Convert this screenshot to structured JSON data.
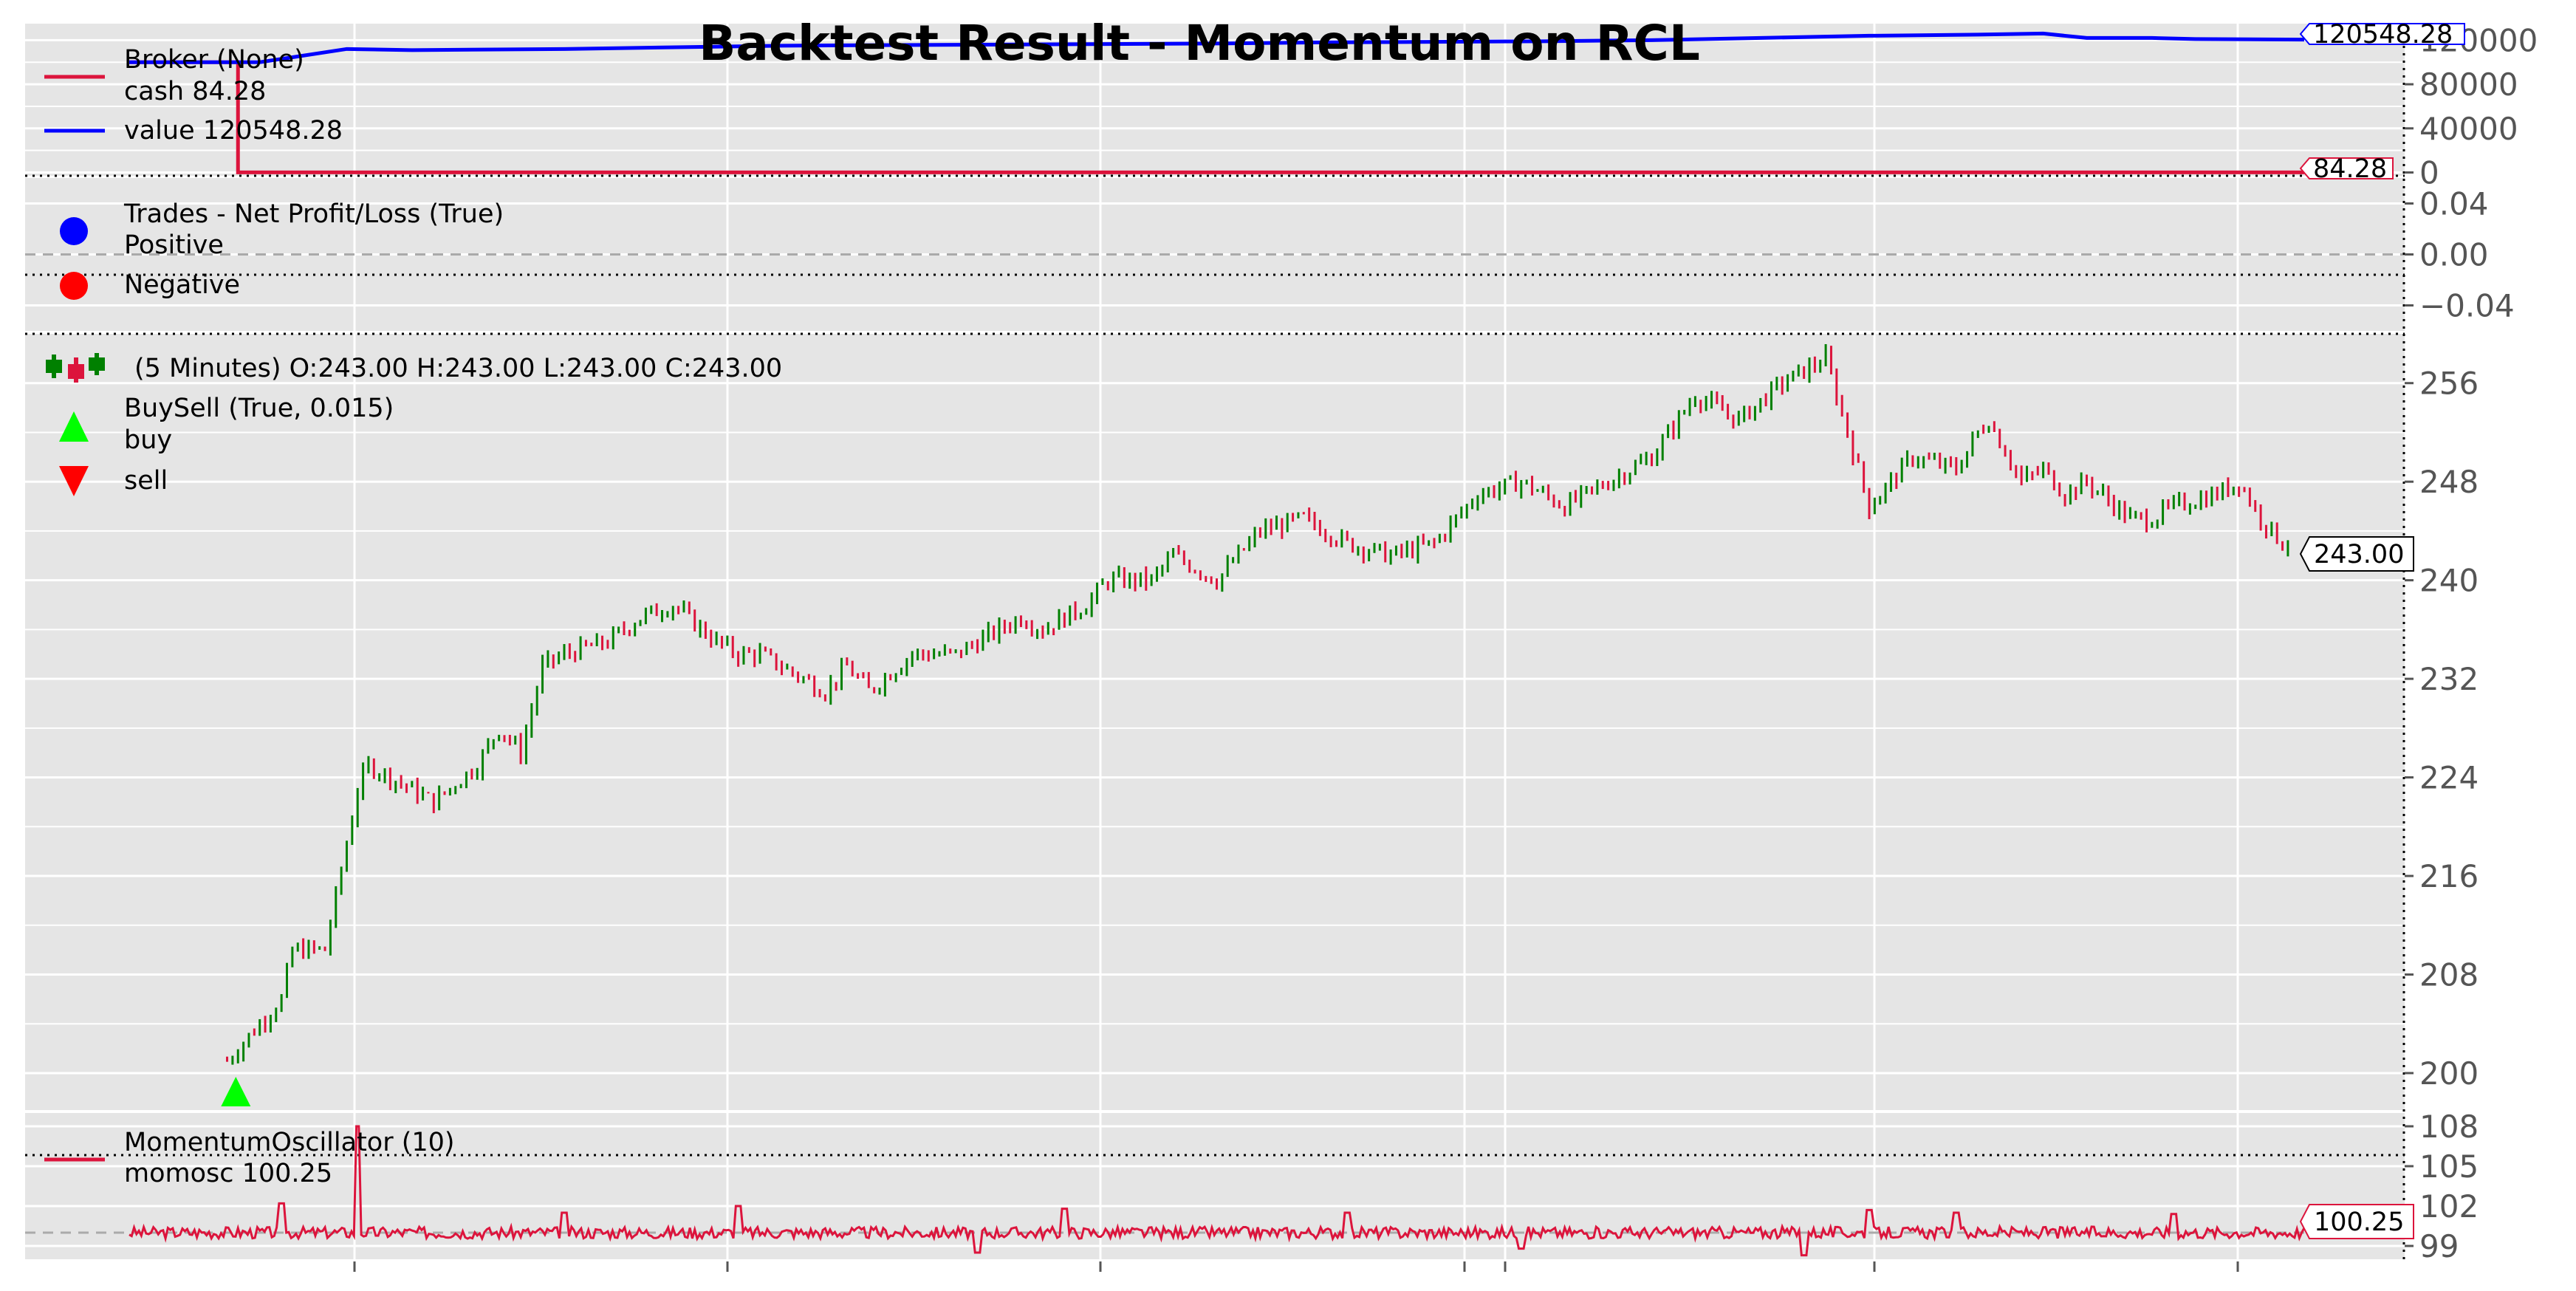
{
  "title": "Backtest Result - Momentum on RCL",
  "colors": {
    "panel_bg": "#e5e5e5",
    "grid": "#ffffff",
    "cash": "#dc143c",
    "value": "#0000ff",
    "positive": "#0000ff",
    "negative": "#ff0000",
    "candle_up": "#008000",
    "candle_down": "#dc143c",
    "buy": "#00ff00",
    "sell": "#ff0000",
    "momentum": "#dc143c"
  },
  "chart_data": [
    {
      "panel": "broker",
      "type": "line",
      "legend": {
        "title": "Broker (None)",
        "entries": [
          "cash 84.28",
          "value 120548.28"
        ]
      },
      "y_ticks": [
        "0",
        "40000",
        "80000",
        "120000"
      ],
      "y_tick_values": [
        0,
        40000,
        80000,
        120000
      ],
      "ylim": [
        -3000,
        135000
      ],
      "last_values": {
        "cash": "84.28",
        "value": "120548.28"
      },
      "series": [
        {
          "name": "cash",
          "x": [
            0,
            0.05,
            0.05,
            0.06,
            1.0
          ],
          "y": [
            100000,
            100000,
            84.28,
            84.28,
            84.28
          ]
        },
        {
          "name": "value",
          "x": [
            0,
            0.06,
            0.1,
            0.13,
            0.2,
            0.3,
            0.4,
            0.5,
            0.55,
            0.6,
            0.65,
            0.7,
            0.75,
            0.8,
            0.85,
            0.88,
            0.9,
            0.93,
            0.95,
            1.0
          ],
          "y": [
            100000,
            100000,
            112000,
            111000,
            112000,
            115000,
            116000,
            117000,
            118000,
            118500,
            119000,
            120000,
            122000,
            124000,
            125000,
            126000,
            122000,
            122000,
            121000,
            120548.28
          ]
        }
      ]
    },
    {
      "panel": "trades",
      "type": "scatter",
      "legend": {
        "title": "Trades - Net Profit/Loss (True)",
        "entries": [
          "Positive",
          "Negative"
        ]
      },
      "y_ticks": [
        "0.04",
        "0.00",
        "−0.04"
      ],
      "y_tick_values": [
        0.04,
        0.0,
        -0.04
      ],
      "ylim": [
        -0.06,
        0.06
      ],
      "points": []
    },
    {
      "panel": "price",
      "type": "candlestick",
      "legend": {
        "title": "(5 Minutes) O:243.00 H:243.00 L:243.00 C:243.00",
        "buysell_title": "BuySell (True, 0.015)",
        "entries": [
          "buy",
          "sell"
        ]
      },
      "ohlc": {
        "open": 243.0,
        "high": 243.0,
        "low": 243.0,
        "close": 243.0
      },
      "last_value": "243.00",
      "y_ticks": [
        "200",
        "208",
        "216",
        "224",
        "232",
        "240",
        "248",
        "256"
      ],
      "y_tick_values": [
        200,
        208,
        216,
        224,
        232,
        240,
        248,
        256
      ],
      "ylim": [
        197,
        260
      ],
      "buy_markers": [
        {
          "x": 0.049,
          "y": 198.5
        }
      ],
      "sell_markers": [],
      "close_path": {
        "x": [
          0.045,
          0.05,
          0.06,
          0.07,
          0.075,
          0.08,
          0.09,
          0.105,
          0.11,
          0.12,
          0.13,
          0.14,
          0.16,
          0.17,
          0.18,
          0.19,
          0.2,
          0.22,
          0.235,
          0.25,
          0.27,
          0.28,
          0.29,
          0.31,
          0.32,
          0.33,
          0.34,
          0.36,
          0.38,
          0.4,
          0.41,
          0.42,
          0.44,
          0.45,
          0.47,
          0.48,
          0.5,
          0.52,
          0.54,
          0.56,
          0.58,
          0.6,
          0.62,
          0.64,
          0.66,
          0.68,
          0.7,
          0.72,
          0.74,
          0.76,
          0.78,
          0.8,
          0.82,
          0.84,
          0.85,
          0.855,
          0.87,
          0.88,
          0.89,
          0.9,
          0.92,
          0.93,
          0.94,
          0.96,
          0.97,
          0.98,
          0.99,
          0.995
        ],
        "y": [
          201,
          202,
          204,
          206,
          210,
          210,
          210,
          223,
          225,
          224,
          223,
          222,
          225,
          228,
          226,
          233,
          234,
          235,
          237,
          238,
          235,
          234,
          234,
          232,
          231,
          233,
          231,
          234,
          234,
          236,
          237,
          236,
          238,
          240,
          240,
          242,
          240,
          244,
          245,
          243,
          242,
          243,
          247,
          248,
          246,
          248,
          250,
          255,
          253,
          256,
          258,
          246,
          250,
          249,
          252,
          253,
          248,
          249,
          247,
          248,
          245,
          245,
          246,
          247,
          248,
          245,
          243,
          243
        ]
      }
    },
    {
      "panel": "momentum",
      "type": "line",
      "legend": {
        "title": "MomentumOscillator (10)",
        "entries": [
          "momosc 100.25"
        ]
      },
      "y_ticks": [
        "99",
        "102",
        "105",
        "108"
      ],
      "y_tick_values": [
        99,
        102,
        105,
        108
      ],
      "ylim": [
        98,
        109
      ],
      "reference_line": 100,
      "last_value": "100.25",
      "spikes": [
        {
          "x": 0.07,
          "y": 102.2
        },
        {
          "x": 0.105,
          "y": 108.0
        },
        {
          "x": 0.2,
          "y": 101.5
        },
        {
          "x": 0.28,
          "y": 102.0
        },
        {
          "x": 0.39,
          "y": 98.5
        },
        {
          "x": 0.43,
          "y": 101.8
        },
        {
          "x": 0.56,
          "y": 101.5
        },
        {
          "x": 0.64,
          "y": 98.8
        },
        {
          "x": 0.77,
          "y": 98.3
        },
        {
          "x": 0.8,
          "y": 101.7
        },
        {
          "x": 0.84,
          "y": 101.5
        },
        {
          "x": 0.94,
          "y": 101.4
        }
      ]
    }
  ]
}
